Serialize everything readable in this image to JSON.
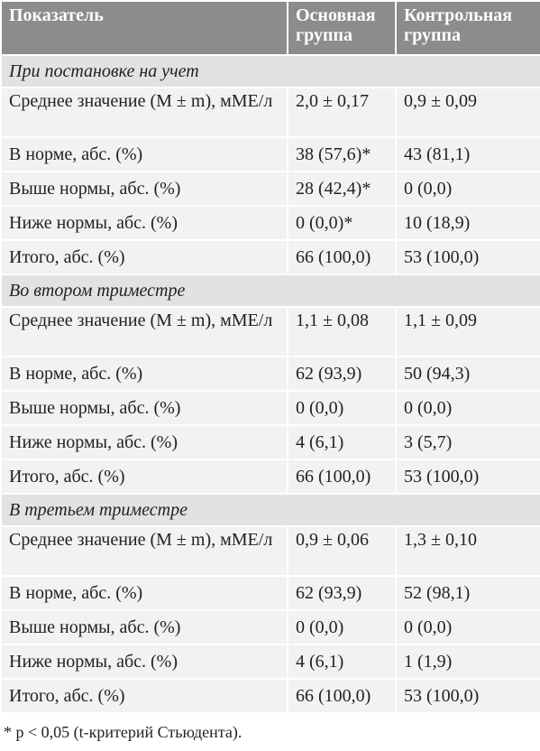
{
  "table": {
    "header": [
      "Показатель",
      "Основная группа",
      "Контрольная группа"
    ],
    "sections": [
      {
        "title": "При постановке на учет",
        "rows": [
          [
            "Среднее значение (M ± m), мМЕ/л",
            "2,0 ± 0,17",
            "0,9 ± 0,09"
          ],
          [
            "В норме, абс. (%)",
            "38 (57,6)*",
            "43 (81,1)"
          ],
          [
            "Выше нормы, абс. (%)",
            "28 (42,4)*",
            "0 (0,0)"
          ],
          [
            "Ниже нормы, абс. (%)",
            "0 (0,0)*",
            "10 (18,9)"
          ],
          [
            "Итого, абс. (%)",
            "66 (100,0)",
            "53 (100,0)"
          ]
        ]
      },
      {
        "title": "Во втором триместре",
        "rows": [
          [
            "Среднее значение (M ± m), мМЕ/л",
            "1,1 ± 0,08",
            "1,1 ± 0,09"
          ],
          [
            "В норме, абс. (%)",
            "62 (93,9)",
            "50 (94,3)"
          ],
          [
            "Выше нормы, абс. (%)",
            "0 (0,0)",
            "0 (0,0)"
          ],
          [
            "Ниже нормы, абс. (%)",
            "4 (6,1)",
            "3 (5,7)"
          ],
          [
            "Итого, абс. (%)",
            "66 (100,0)",
            "53 (100,0)"
          ]
        ]
      },
      {
        "title": "В третьем триместре",
        "rows": [
          [
            "Среднее значение (M ± m), мМЕ/л",
            "0,9 ± 0,06",
            "1,3 ± 0,10"
          ],
          [
            "В норме, абс. (%)",
            "62 (93,9)",
            "52 (98,1)"
          ],
          [
            "Выше нормы, абс. (%)",
            "0 (0,0)",
            "0 (0,0)"
          ],
          [
            "Ниже нормы, абс. (%)",
            "4 (6,1)",
            "1 (1,9)"
          ],
          [
            "Итого, абс. (%)",
            "66 (100,0)",
            "53 (100,0)"
          ]
        ]
      }
    ],
    "footnote": "* p < 0,05 (t-критерий Стьюдента)."
  }
}
